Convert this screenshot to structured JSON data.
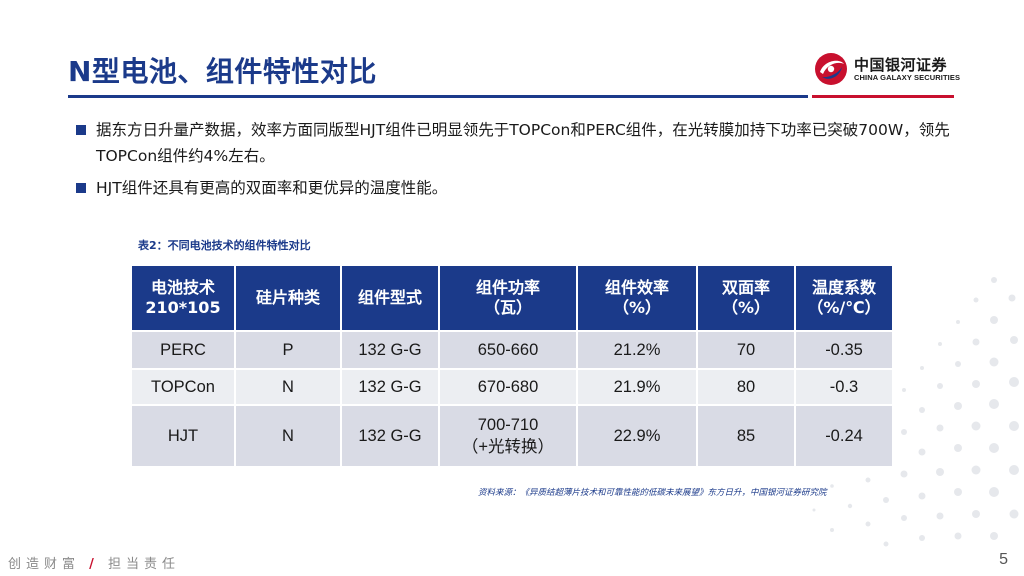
{
  "header": {
    "title": "N型电池、组件特性对比",
    "logo": {
      "name_cn": "中国银河证券",
      "name_en": "CHINA GALAXY SECURITIES",
      "icon": "galaxy-logo-icon"
    }
  },
  "bullets": [
    "据东方日升量产数据，效率方面同版型HJT组件已明显领先于TOPCon和PERC组件，在光转膜加持下功率已突破700W，领先TOPCon组件约4%左右。",
    "HJT组件还具有更高的双面率和更优异的温度性能。"
  ],
  "table": {
    "caption": "表2：不同电池技术的组件特性对比",
    "headers": [
      {
        "line1": "电池技术",
        "line2": "210*105"
      },
      {
        "line1": "硅片种类",
        "line2": ""
      },
      {
        "line1": "组件型式",
        "line2": ""
      },
      {
        "line1": "组件功率",
        "line2": "（瓦）"
      },
      {
        "line1": "组件效率",
        "line2": "（%）"
      },
      {
        "line1": "双面率",
        "line2": "（%）"
      },
      {
        "line1": "温度系数",
        "line2": "（%/℃）"
      }
    ],
    "rows": [
      {
        "tech": "PERC",
        "wafer": "P",
        "module": "132 G-G",
        "power": "650-660",
        "power_note": "",
        "efficiency": "21.2%",
        "bifaciality": "70",
        "temp_coef": "-0.35"
      },
      {
        "tech": "TOPCon",
        "wafer": "N",
        "module": "132 G-G",
        "power": "670-680",
        "power_note": "",
        "efficiency": "21.9%",
        "bifaciality": "80",
        "temp_coef": "-0.3"
      },
      {
        "tech": "HJT",
        "wafer": "N",
        "module": "132 G-G",
        "power": "700-710",
        "power_note": "（+光转换）",
        "efficiency": "22.9%",
        "bifaciality": "85",
        "temp_coef": "-0.24"
      }
    ],
    "source": "资料来源：《异质结超薄片技术和可靠性能的低碳未来展望》东方日升，中国银河证券研究院"
  },
  "footer": {
    "slogan_left": "创造财富",
    "slogan_slash": "/",
    "slogan_right": "担当责任",
    "page_number": "5"
  },
  "colors": {
    "brand_blue": "#1b3a8a",
    "brand_red": "#c8102e",
    "row_dark": "#d9dbe5",
    "row_light": "#eceef2"
  }
}
